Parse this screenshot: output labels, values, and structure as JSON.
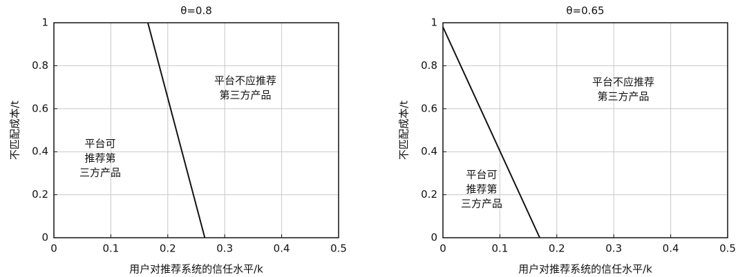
{
  "chart_data": [
    {
      "type": "line",
      "title": "θ=0.8",
      "xlabel": "用户对推荐系统的信任水平/k",
      "ylabel": "不匹配成本/t",
      "x": [
        0.165,
        0.265
      ],
      "series": [
        {
          "color": "#111111",
          "values": [
            1,
            0
          ]
        }
      ],
      "xlim": [
        0,
        0.5
      ],
      "ylim": [
        0,
        1
      ],
      "xticks": [
        0,
        0.1,
        0.2,
        0.3,
        0.4,
        0.5
      ],
      "yticks": [
        0,
        0.2,
        0.4,
        0.6,
        0.8,
        1
      ],
      "grid": true,
      "annotations": [
        [
          "平台可",
          "推荐第",
          "三方产品"
        ],
        [
          "平台不应推荐",
          "第三方产品"
        ]
      ]
    },
    {
      "type": "line",
      "title": "θ=0.65",
      "xlabel": "用户对推荐系统的信任水平/k",
      "ylabel": "不匹配成本/t",
      "x": [
        0,
        0.17
      ],
      "series": [
        {
          "color": "#111111",
          "values": [
            0.98,
            0
          ]
        }
      ],
      "xlim": [
        0,
        0.5
      ],
      "ylim": [
        0,
        1
      ],
      "xticks": [
        0,
        0.1,
        0.2,
        0.3,
        0.4,
        0.5
      ],
      "yticks": [
        0,
        0.2,
        0.4,
        0.6,
        0.8,
        1
      ],
      "grid": true,
      "annotations": [
        [
          "平台可",
          "推荐第",
          "三方产品"
        ],
        [
          "平台不应推荐",
          "第三方产品"
        ]
      ]
    }
  ]
}
